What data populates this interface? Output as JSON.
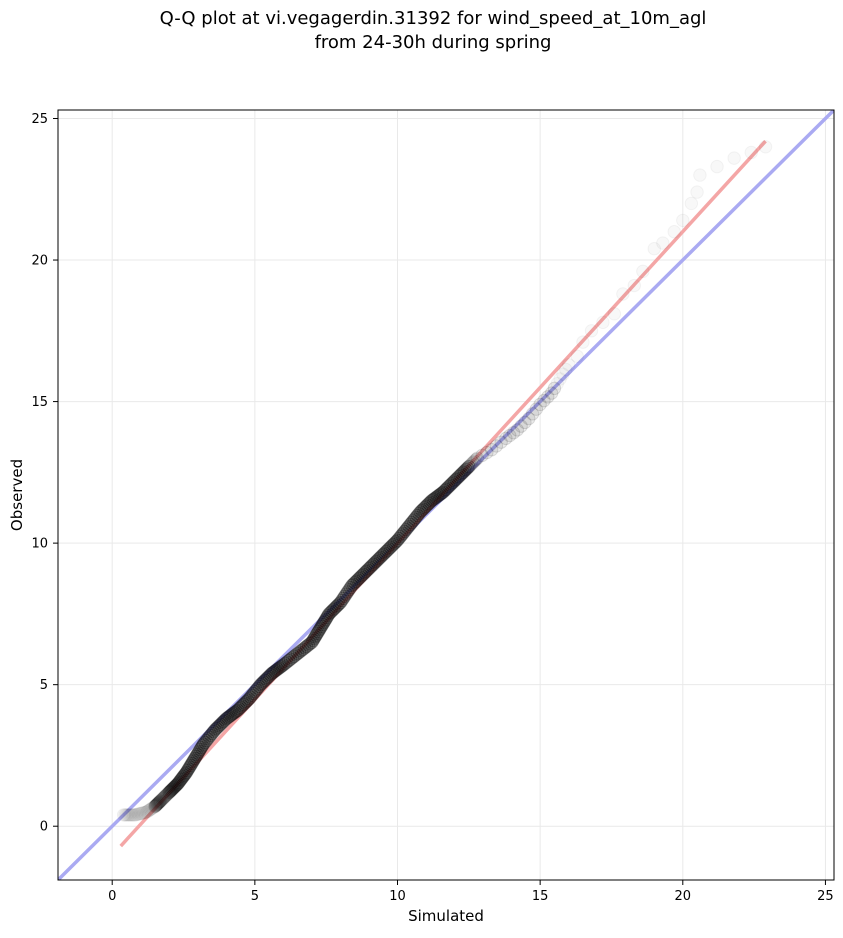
{
  "chart_data": {
    "type": "scatter",
    "title": "Q-Q plot at vi.vegagerdin.31392 for wind_speed_at_10m_agl",
    "subtitle": "from 24-30h during spring",
    "xlabel": "Simulated",
    "ylabel": "Observed",
    "xlim": [
      -1.9,
      25.3
    ],
    "ylim": [
      -1.9,
      25.3
    ],
    "xticks": [
      "0",
      "5",
      "10",
      "15",
      "20",
      "25"
    ],
    "yticks": [
      "0",
      "5",
      "10",
      "15",
      "20",
      "25"
    ],
    "grid": true,
    "identity_line": {
      "color": "#aaaaf2",
      "x": [
        -1.9,
        25.3
      ],
      "y": [
        -1.9,
        25.3
      ]
    },
    "fit_line": {
      "color": "#f4a6a6",
      "x": [
        0.3,
        22.9
      ],
      "y": [
        -0.7,
        24.2
      ]
    },
    "quantiles": {
      "color": "#000000",
      "points": [
        [
          0.4,
          0.4
        ],
        [
          0.8,
          0.4
        ],
        [
          1.2,
          0.5
        ],
        [
          1.5,
          0.7
        ],
        [
          1.7,
          0.9
        ],
        [
          2.0,
          1.2
        ],
        [
          2.3,
          1.5
        ],
        [
          2.6,
          1.9
        ],
        [
          2.9,
          2.4
        ],
        [
          3.2,
          2.9
        ],
        [
          3.6,
          3.4
        ],
        [
          4.0,
          3.8
        ],
        [
          4.4,
          4.1
        ],
        [
          4.8,
          4.5
        ],
        [
          5.2,
          5.0
        ],
        [
          5.6,
          5.4
        ],
        [
          6.0,
          5.7
        ],
        [
          6.5,
          6.1
        ],
        [
          7.0,
          6.5
        ],
        [
          7.3,
          7.0
        ],
        [
          7.6,
          7.5
        ],
        [
          8.0,
          7.9
        ],
        [
          8.4,
          8.5
        ],
        [
          8.8,
          8.9
        ],
        [
          9.2,
          9.3
        ],
        [
          9.6,
          9.7
        ],
        [
          10.0,
          10.1
        ],
        [
          10.4,
          10.6
        ],
        [
          10.8,
          11.1
        ],
        [
          11.2,
          11.5
        ],
        [
          11.6,
          11.8
        ],
        [
          12.0,
          12.2
        ],
        [
          12.4,
          12.6
        ],
        [
          12.8,
          13.0
        ],
        [
          13.3,
          13.3
        ],
        [
          13.8,
          13.7
        ],
        [
          14.2,
          14.0
        ],
        [
          14.6,
          14.4
        ],
        [
          15.0,
          14.9
        ],
        [
          15.4,
          15.3
        ],
        [
          15.7,
          15.8
        ],
        [
          16.0,
          16.3
        ],
        [
          16.3,
          16.6
        ],
        [
          16.5,
          17.1
        ],
        [
          16.8,
          17.5
        ],
        [
          17.2,
          17.8
        ],
        [
          17.6,
          18.1
        ],
        [
          17.9,
          18.8
        ],
        [
          18.3,
          19.1
        ],
        [
          18.6,
          19.6
        ],
        [
          19.0,
          20.4
        ],
        [
          19.3,
          20.6
        ],
        [
          19.7,
          21.0
        ],
        [
          20.0,
          21.4
        ],
        [
          20.3,
          22.0
        ],
        [
          20.5,
          22.4
        ],
        [
          20.6,
          23.0
        ],
        [
          21.2,
          23.3
        ],
        [
          21.8,
          23.6
        ],
        [
          22.4,
          23.8
        ],
        [
          22.9,
          24.0
        ]
      ]
    }
  }
}
